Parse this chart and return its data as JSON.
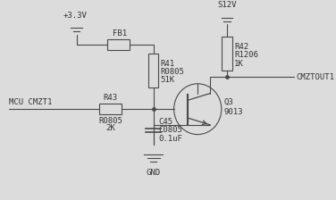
{
  "bg_color": "#dcdcdc",
  "line_color": "#4a4a4a",
  "text_color": "#333333",
  "font_size": 6.5,
  "components": {
    "vcc_33": "+3.3V",
    "s12v": "S12V",
    "fb1": "FB1",
    "r41_1": "R41",
    "r41_2": "R0805",
    "r41_3": "51K",
    "r42_1": "R42",
    "r42_2": "R1206",
    "r42_3": "1K",
    "r43_1": "R43",
    "r43_2": "R0805",
    "r43_3": "2K",
    "c45_1": "C45",
    "c45_2": "C0805",
    "c45_3": "0.1uF",
    "q3_1": "Q3",
    "q3_2": "9013",
    "mcu": "MCU CMZT1",
    "cmztout": "CMZTOUT1",
    "gnd": "GND"
  }
}
